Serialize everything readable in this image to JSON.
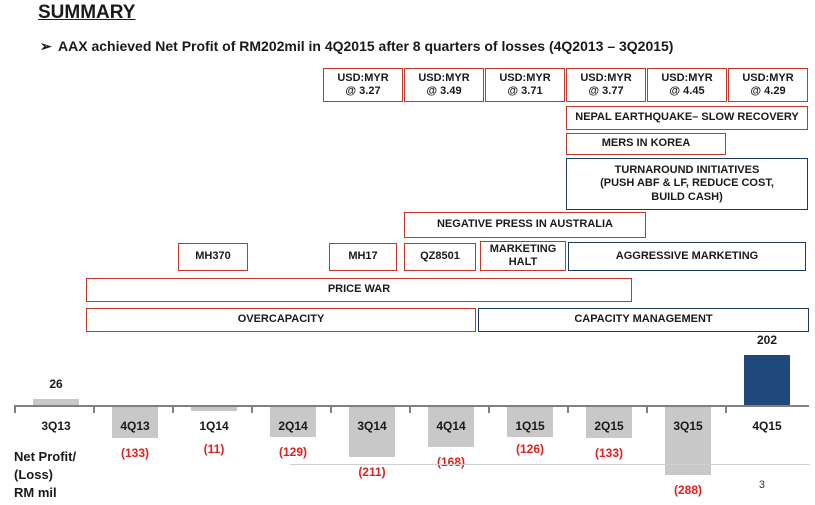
{
  "title": "SUMMARY",
  "bullet": {
    "arrow": "➢",
    "text": "AAX achieved Net Profit of RM202mil in 4Q2015 after 8 quarters of losses (4Q2013 – 3Q2015)"
  },
  "fx": [
    {
      "label": "USD:MYR",
      "rate": "@ 3.27"
    },
    {
      "label": "USD:MYR",
      "rate": "@ 3.49"
    },
    {
      "label": "USD:MYR",
      "rate": "@ 3.71"
    },
    {
      "label": "USD:MYR",
      "rate": "@ 3.77"
    },
    {
      "label": "USD:MYR",
      "rate": "@ 4.45"
    },
    {
      "label": "USD:MYR",
      "rate": "@ 4.29"
    }
  ],
  "events": {
    "nepal": "NEPAL EARTHQUAKE– SLOW RECOVERY",
    "mers": "MERS IN KOREA",
    "turnaround_1": "TURNAROUND INITIATIVES",
    "turnaround_2": "(PUSH ABF & LF, REDUCE COST,",
    "turnaround_3": "BUILD CASH)",
    "negative_press": "NEGATIVE PRESS IN AUSTRALIA",
    "mh370": "MH370",
    "mh17": "MH17",
    "qz8501": "QZ8501",
    "marketing_halt_1": "MARKETING",
    "marketing_halt_2": "HALT",
    "aggressive_marketing": "AGGRESSIVE MARKETING",
    "price_war": "PRICE WAR",
    "overcapacity": "OVERCAPACITY",
    "capacity_management": "CAPACITY MANAGEMENT"
  },
  "colors": {
    "red_border": "#c0392b",
    "blue_border": "#1f3a5f",
    "loss": "#e02020",
    "bar": "#c8c8c8",
    "profit_bar": "#1f497d"
  },
  "row_label": [
    "Net Profit/",
    "(Loss)",
    "RM mil"
  ],
  "page_number": "3",
  "chart_data": {
    "type": "bar",
    "categories": [
      "3Q13",
      "4Q13",
      "1Q14",
      "2Q14",
      "3Q14",
      "4Q14",
      "1Q15",
      "2Q15",
      "3Q15",
      "4Q15"
    ],
    "values": [
      26,
      -133,
      -11,
      -129,
      -211,
      -168,
      -126,
      -133,
      -288,
      202
    ],
    "value_labels": [
      "26",
      "(133)",
      "(11)",
      "(129)",
      "(211)",
      "(168)",
      "(126)",
      "(133)",
      "(288)",
      "202"
    ]
  }
}
